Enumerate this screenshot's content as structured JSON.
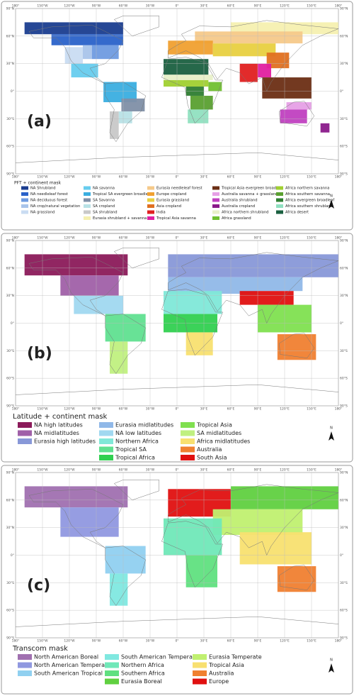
{
  "lon_labels": [
    "180°",
    "150°W",
    "120°W",
    "90°W",
    "60°W",
    "30°W",
    "0°",
    "30°E",
    "60°E",
    "90°E",
    "120°E",
    "150°E",
    "180°"
  ],
  "lat_labels": [
    "90°N",
    "60°N",
    "30°N",
    "0°",
    "30°S",
    "60°S",
    "90°S"
  ],
  "north": "N",
  "panels": [
    {
      "label": "(a)",
      "legend_title": "PFT + continent mask",
      "entries": [
        {
          "name": "NA Shrubland",
          "color": "#1a3d8f"
        },
        {
          "name": "NA needleleaf forest",
          "color": "#2a62c9"
        },
        {
          "name": "NA deciduous forest",
          "color": "#6f9be0"
        },
        {
          "name": "NA crop/natural vegetation",
          "color": "#a9c4ea"
        },
        {
          "name": "NA grassland",
          "color": "#c9dcf2"
        },
        {
          "name": "NA savanna",
          "color": "#66ccee"
        },
        {
          "name": "Tropical SA evergreen broadleaf",
          "color": "#3aaee0"
        },
        {
          "name": "SA Savanna",
          "color": "#7f8fa6"
        },
        {
          "name": "SA cropland",
          "color": "#b8e2e6"
        },
        {
          "name": "SA shrubland",
          "color": "#c8c8c8"
        },
        {
          "name": "Eurasia shrubland + savanna",
          "color": "#f5f0b0"
        },
        {
          "name": "Eurasia needleleaf forest",
          "color": "#f5c98a"
        },
        {
          "name": "Europe cropland",
          "color": "#f0a030"
        },
        {
          "name": "Eurasia grassland",
          "color": "#e8d040"
        },
        {
          "name": "Asia cropland",
          "color": "#e07020"
        },
        {
          "name": "India",
          "color": "#e02020"
        },
        {
          "name": "Tropical Asia savanna",
          "color": "#e020a0"
        },
        {
          "name": "Tropical Asia evergreen broadleaf",
          "color": "#6b2e14"
        },
        {
          "name": "Australia savanna + grassland",
          "color": "#e6a0e6"
        },
        {
          "name": "Australia shrubland",
          "color": "#c040c0"
        },
        {
          "name": "Australia cropland",
          "color": "#8a1a8a"
        },
        {
          "name": "Africa northern shrubland",
          "color": "#e8f0c8"
        },
        {
          "name": "Africa grassland",
          "color": "#70c030"
        },
        {
          "name": "Africa northern savanna",
          "color": "#a0d030"
        },
        {
          "name": "Africa southern savanna",
          "color": "#5aa030"
        },
        {
          "name": "Africa evergreen broadleaf",
          "color": "#2e7d32"
        },
        {
          "name": "Africa southern shrubland",
          "color": "#90e0c0"
        },
        {
          "name": "Africa desert",
          "color": "#1a6040"
        }
      ]
    },
    {
      "label": "(b)",
      "legend_title": "Latitude + continent mask",
      "entries": [
        {
          "name": "NA high latitudes",
          "color": "#8b1a5a"
        },
        {
          "name": "NA midlatitudes",
          "color": "#a060a8"
        },
        {
          "name": "Eurasia high latitudes",
          "color": "#8898d8"
        },
        {
          "name": "Eurasia midlatitudes",
          "color": "#90b8e8"
        },
        {
          "name": "NA low latitudes",
          "color": "#a0d8f0"
        },
        {
          "name": "Northern Africa",
          "color": "#80e8d8"
        },
        {
          "name": "Tropical SA",
          "color": "#60e090"
        },
        {
          "name": "Tropical Africa",
          "color": "#30d050"
        },
        {
          "name": "Tropical Asia",
          "color": "#80e050"
        },
        {
          "name": "SA midlatitudes",
          "color": "#c0f080"
        },
        {
          "name": "Africa midlatitudes",
          "color": "#f8e070"
        },
        {
          "name": "Australia",
          "color": "#f08030"
        },
        {
          "name": "South Asia",
          "color": "#e01010"
        }
      ]
    },
    {
      "label": "(c)",
      "legend_title": "Transcom mask",
      "entries": [
        {
          "name": "North American Boreal",
          "color": "#a070b0"
        },
        {
          "name": "North American Temperate",
          "color": "#9098e0"
        },
        {
          "name": "South American Tropical",
          "color": "#90d0f0"
        },
        {
          "name": "South American Temperate",
          "color": "#80e8e0"
        },
        {
          "name": "Northern Africa",
          "color": "#70e8b8"
        },
        {
          "name": "Southern Africa",
          "color": "#60e080"
        },
        {
          "name": "Eurasia Boreal",
          "color": "#60d040"
        },
        {
          "name": "Eurasia Temperate",
          "color": "#c0f070"
        },
        {
          "name": "Tropical Asia",
          "color": "#f8e070"
        },
        {
          "name": "Australia",
          "color": "#f08030"
        },
        {
          "name": "Europe",
          "color": "#e01010"
        }
      ]
    }
  ]
}
